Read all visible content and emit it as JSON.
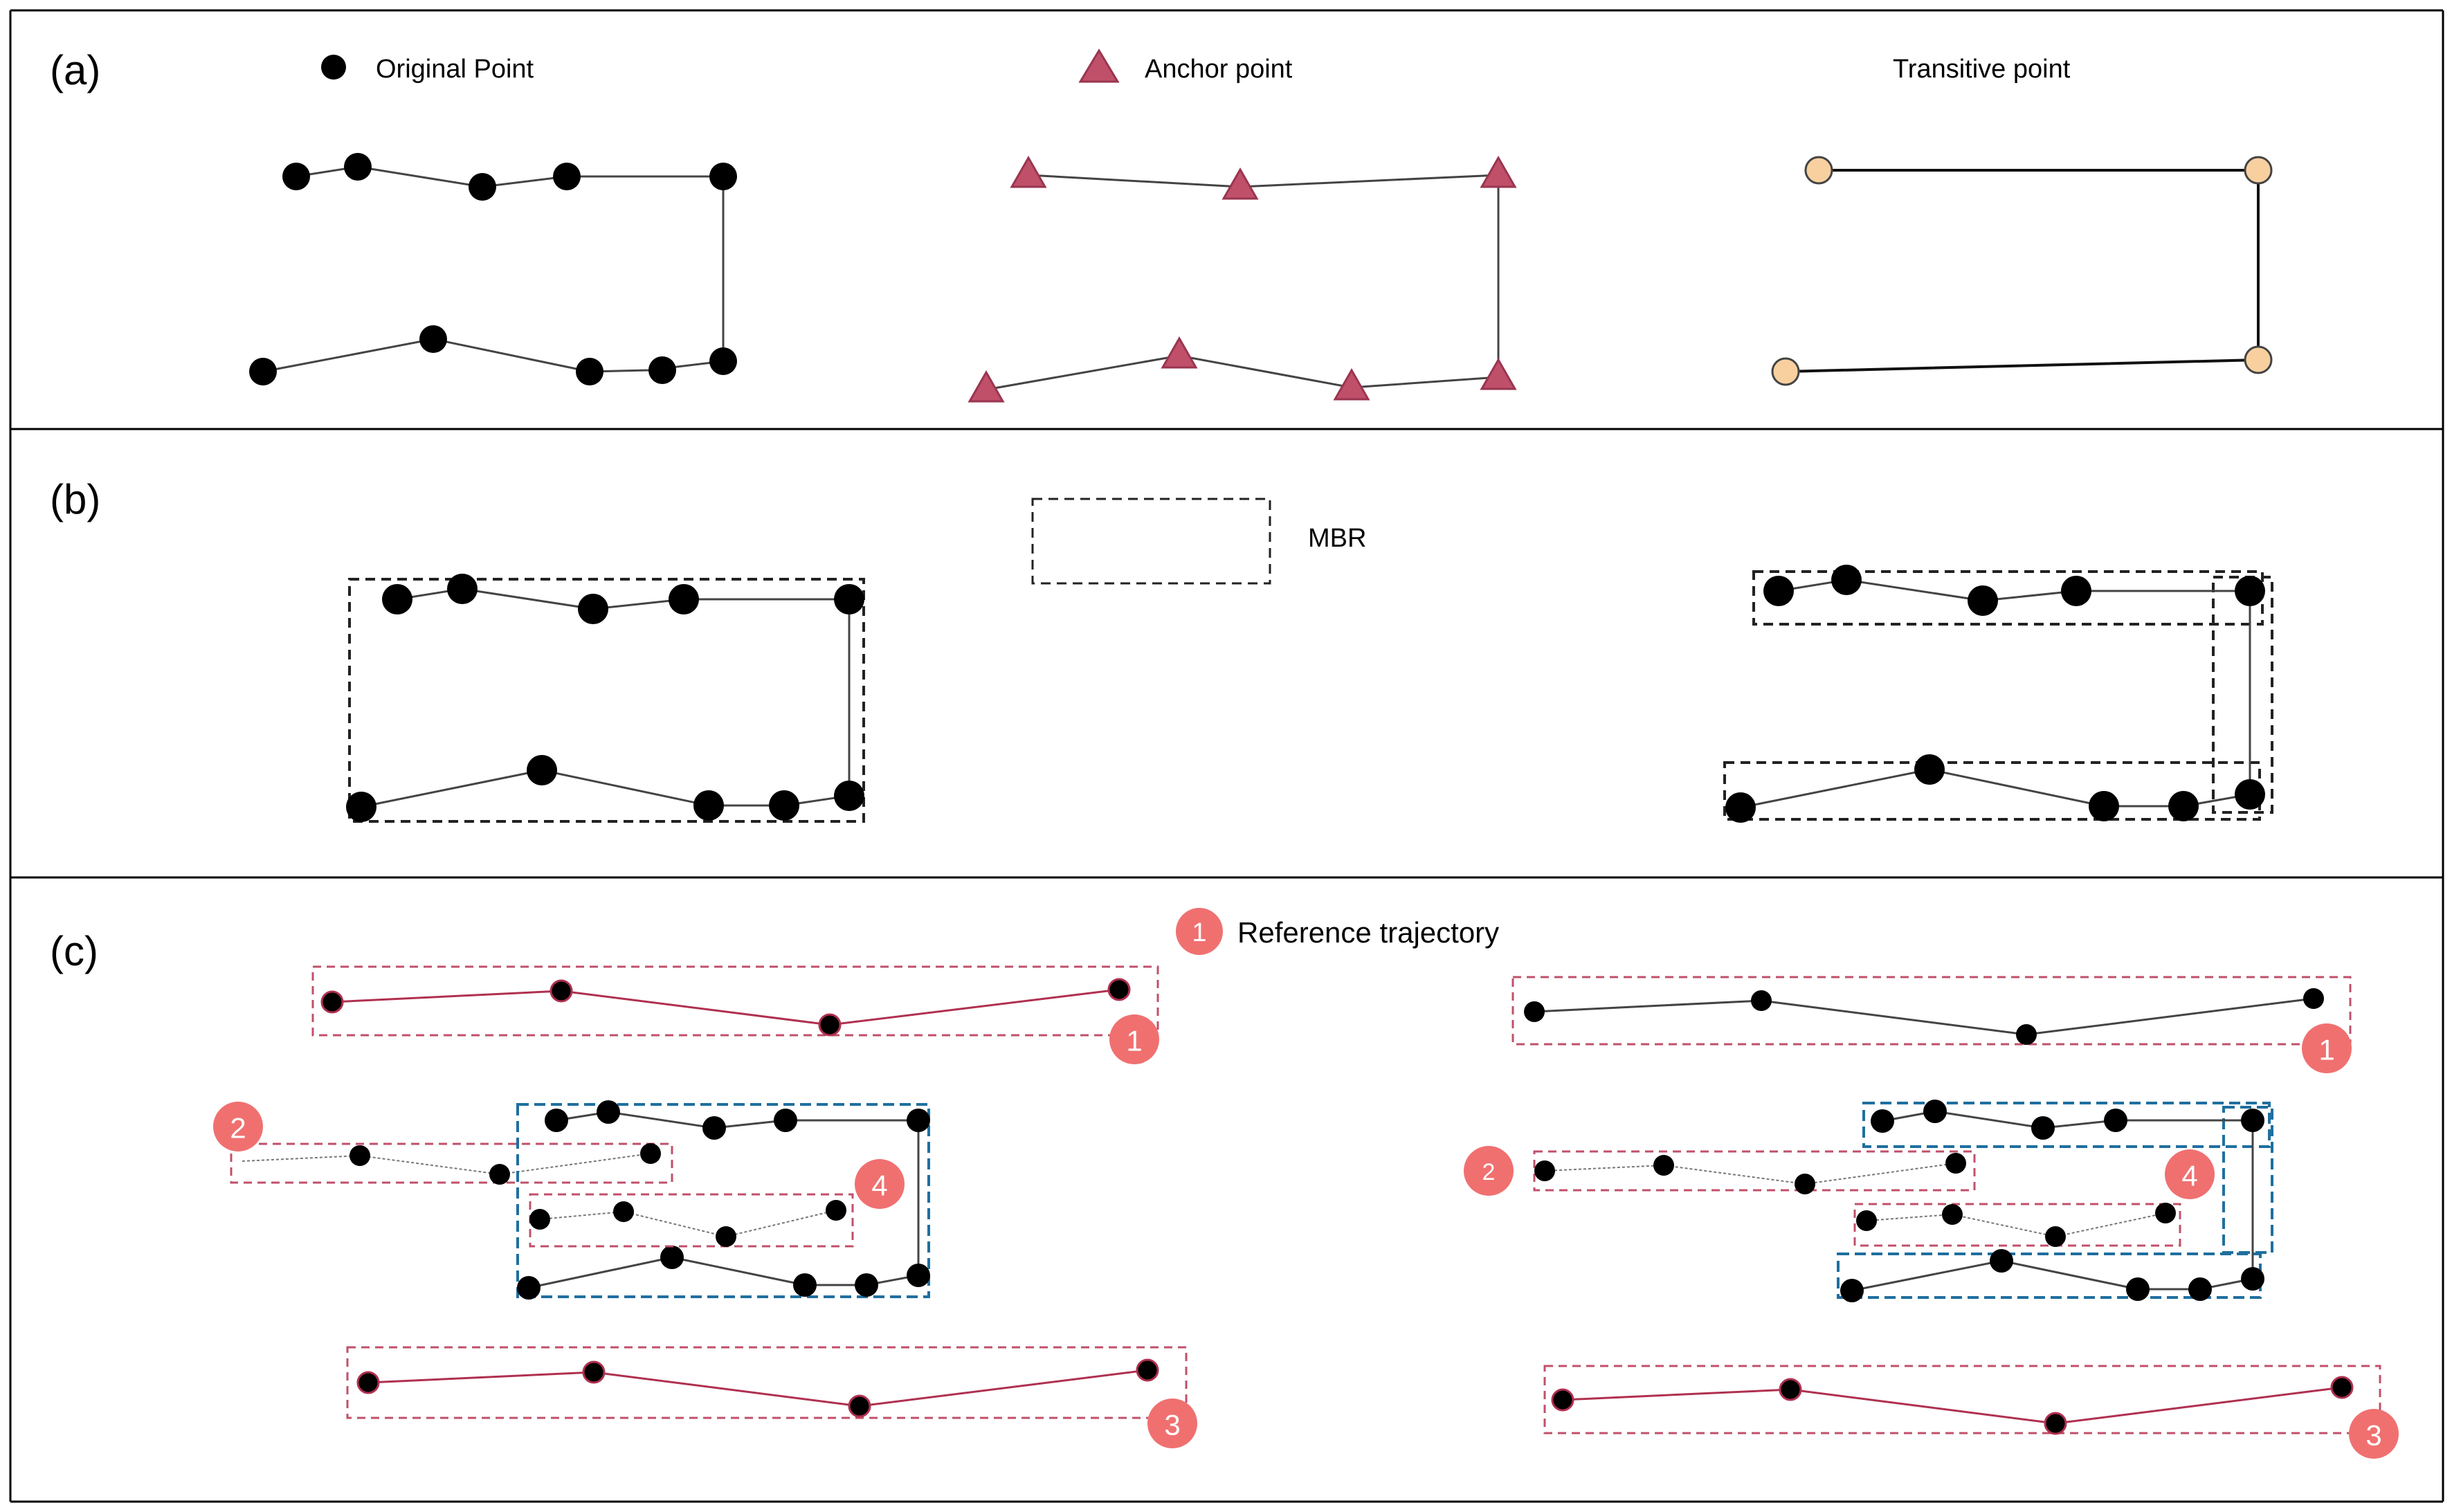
{
  "panel_a": {
    "label": "(a)",
    "legend_original": "Original Point",
    "legend_anchor": "Anchor point",
    "legend_transitive": "Transitive point"
  },
  "panel_b": {
    "label": "(b)",
    "legend_mbr": "MBR"
  },
  "panel_c": {
    "label": "(c)",
    "legend_reference": "Reference trajectory",
    "legend_reference_badge": "1",
    "badges": [
      "1",
      "2",
      "3",
      "4"
    ]
  },
  "colors": {
    "original_point": "#000000",
    "anchor_point": "#c0506a",
    "transitive_point": "#f8d0a0",
    "reference_line": "#b03050",
    "reference_box": "#c0506a",
    "cluster_box": "#1f6f9f",
    "badge": "#f07070"
  },
  "icons": {
    "original_point": "black-dot-icon",
    "anchor_point": "pink-triangle-icon",
    "transitive_point": "orange-circle-icon",
    "mbr": "dashed-rectangle-icon",
    "reference": "numbered-badge-icon"
  }
}
